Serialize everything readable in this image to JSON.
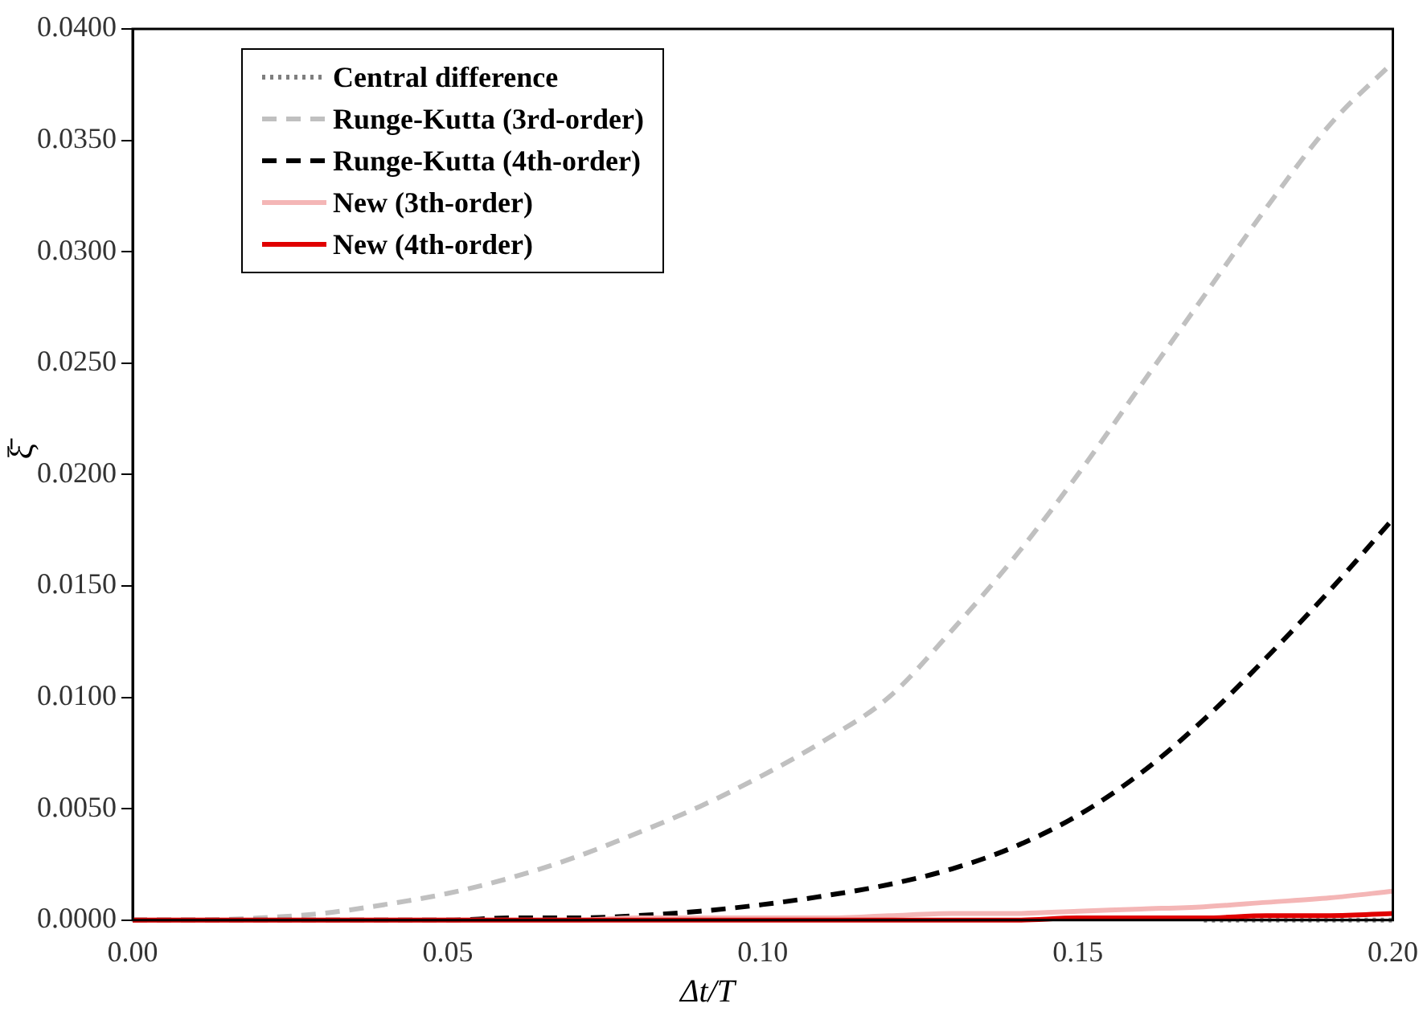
{
  "chart_data": {
    "type": "line",
    "xlabel": "Δt/T",
    "ylabel": "ξ̄",
    "x": [
      0,
      0.01,
      0.02,
      0.03,
      0.04,
      0.05,
      0.06,
      0.07,
      0.08,
      0.09,
      0.1,
      0.11,
      0.12,
      0.13,
      0.14,
      0.15,
      0.16,
      0.17,
      0.18,
      0.19,
      0.2
    ],
    "series": [
      {
        "name": "Central difference",
        "color": "#7f7f7f",
        "line_style": "dotted",
        "values": [
          null,
          null,
          null,
          null,
          null,
          null,
          null,
          null,
          null,
          null,
          null,
          null,
          null,
          null,
          null,
          null,
          null,
          0,
          0,
          0,
          0
        ]
      },
      {
        "name": "Runge-Kutta (3rd-order)",
        "color": "#c0c0c0",
        "line_style": "dashed",
        "values": [
          0,
          0,
          0.0001,
          0.0003,
          0.0007,
          0.0012,
          0.0019,
          0.0028,
          0.0039,
          0.0051,
          0.0065,
          0.0081,
          0.01,
          0.013,
          0.0163,
          0.02,
          0.024,
          0.028,
          0.032,
          0.0357,
          0.0385
        ]
      },
      {
        "name": "Runge-Kutta (4th-order)",
        "color": "#000000",
        "line_style": "dashed",
        "values": [
          0,
          0,
          0,
          0,
          0,
          0,
          0.0001,
          0.0001,
          0.0002,
          0.0004,
          0.0007,
          0.0011,
          0.0016,
          0.0023,
          0.0033,
          0.0047,
          0.0066,
          0.009,
          0.0118,
          0.0148,
          0.018
        ]
      },
      {
        "name": "New (3th-order)",
        "color": "#f4b6b6",
        "line_style": "solid",
        "values": [
          0,
          0,
          0,
          0,
          0,
          0,
          0,
          0,
          0.0001,
          0.0001,
          0.0001,
          0.0001,
          0.0002,
          0.0003,
          0.0003,
          0.0004,
          0.0005,
          0.0006,
          0.0008,
          0.001,
          0.0013
        ]
      },
      {
        "name": "New (4th-order)",
        "color": "#e00000",
        "line_style": "solid",
        "values": [
          0,
          0,
          0,
          0,
          0,
          0,
          0,
          0,
          0,
          0,
          0,
          0,
          0,
          0,
          0,
          0.0001,
          0.0001,
          0.0001,
          0.0002,
          0.0002,
          0.0003
        ]
      }
    ],
    "xlim": [
      0,
      0.2
    ],
    "xticks": [
      {
        "value": 0,
        "label": "0.00"
      },
      {
        "value": 0.05,
        "label": "0.05"
      },
      {
        "value": 0.1,
        "label": "0.10"
      },
      {
        "value": 0.15,
        "label": "0.15"
      },
      {
        "value": 0.2,
        "label": "0.20"
      }
    ],
    "ylim": [
      0,
      0.04
    ],
    "yticks": [
      {
        "value": 0,
        "label": "0.0000"
      },
      {
        "value": 0.005,
        "label": "0.0050"
      },
      {
        "value": 0.01,
        "label": "0.0100"
      },
      {
        "value": 0.015,
        "label": "0.0150"
      },
      {
        "value": 0.02,
        "label": "0.0200"
      },
      {
        "value": 0.025,
        "label": "0.0250"
      },
      {
        "value": 0.03,
        "label": "0.0300"
      },
      {
        "value": 0.035,
        "label": "0.0350"
      },
      {
        "value": 0.04,
        "label": "0.0400"
      }
    ],
    "grid": false,
    "legend": "top left",
    "marker": "none"
  }
}
